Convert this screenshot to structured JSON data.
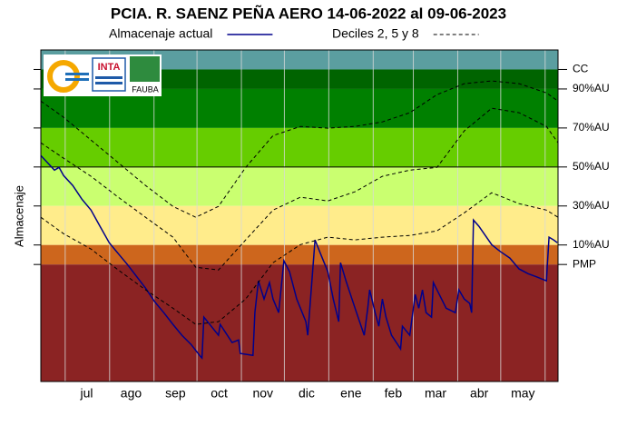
{
  "chart_data": {
    "type": "line",
    "title": "PCIA. R. SAENZ PEÑA AERO 14-06-2022 al 09-06-2023",
    "y_label": "Almacenaje",
    "logos": [
      "INTA",
      "FAUBA"
    ],
    "xlim": [
      0,
      361
    ],
    "xgrid": [
      17,
      48,
      79,
      109,
      140,
      170,
      201,
      232,
      260,
      291,
      321,
      352
    ],
    "xticks": [
      {
        "value": 32,
        "label": "jul"
      },
      {
        "value": 63,
        "label": "ago"
      },
      {
        "value": 94,
        "label": "sep"
      },
      {
        "value": 124.5,
        "label": "oct"
      },
      {
        "value": 155,
        "label": "nov"
      },
      {
        "value": 185.5,
        "label": "dic"
      },
      {
        "value": 216.5,
        "label": "ene"
      },
      {
        "value": 246,
        "label": "feb"
      },
      {
        "value": 275.5,
        "label": "mar"
      },
      {
        "value": 306,
        "label": "abr"
      },
      {
        "value": 336.5,
        "label": "may"
      }
    ],
    "ylim": [
      -60,
      110
    ],
    "yticks": [
      {
        "value": 100,
        "label": "CC"
      },
      {
        "value": 90,
        "label": "90%AU"
      },
      {
        "value": 70,
        "label": "70%AU"
      },
      {
        "value": 50,
        "label": "50%AU"
      },
      {
        "value": 30,
        "label": "30%AU"
      },
      {
        "value": 10,
        "label": "10%AU"
      },
      {
        "value": 0,
        "label": "PMP"
      }
    ],
    "refline": 50,
    "bands": [
      {
        "from": 100,
        "to": 110,
        "color": "#5b9ea0"
      },
      {
        "from": 90,
        "to": 100,
        "color": "#006400"
      },
      {
        "from": 70,
        "to": 90,
        "color": "#008000"
      },
      {
        "from": 50,
        "to": 70,
        "color": "#66cd00"
      },
      {
        "from": 30,
        "to": 50,
        "color": "#caff70"
      },
      {
        "from": 10,
        "to": 30,
        "color": "#ffec8b"
      },
      {
        "from": 0,
        "to": 10,
        "color": "#cd661d"
      },
      {
        "from": -60,
        "to": 0,
        "color": "#8b2323"
      }
    ],
    "series": [
      {
        "name": "Almacenaje actual",
        "color": "#00008b",
        "x": [
          0,
          9.5,
          12.7,
          15.9,
          22.3,
          28.6,
          35,
          41.3,
          47.7,
          54,
          60.4,
          66.8,
          73.1,
          79.5,
          85.8,
          92.2,
          98.5,
          104.9,
          111.3,
          112.5,
          113.8,
          124,
          125.2,
          133.5,
          138,
          139.2,
          148.1,
          149.4,
          151.9,
          155.8,
          159.6,
          162.1,
          166,
          169.7,
          173.6,
          178.6,
          185,
          186.3,
          191.4,
          195.2,
          200.3,
          204.1,
          207.9,
          209.2,
          213,
          219.3,
          225.7,
          228.2,
          229.5,
          233.3,
          235.9,
          238.4,
          240.9,
          244.8,
          251.1,
          252.4,
          257.5,
          261.3,
          263.8,
          266.4,
          268.9,
          272.7,
          274,
          276.5,
          282.9,
          289.3,
          291.8,
          295.6,
          299.4,
          300.7,
          302,
          305.8,
          314.7,
          318.5,
          321,
          327.4,
          333.8,
          340.1,
          346.5,
          352.9,
          354.7,
          357.9,
          360.5
        ],
        "values": [
          55.9,
          48.4,
          49.8,
          45.6,
          40.5,
          33.5,
          27.9,
          19.6,
          11.2,
          5.6,
          0,
          -6.1,
          -12.1,
          -19.1,
          -24.7,
          -30.7,
          -36.3,
          -41,
          -47,
          -48,
          -27,
          -36.3,
          -30.7,
          -40,
          -38.7,
          -45.6,
          -46.6,
          -24.7,
          -8.4,
          -17.7,
          -9.3,
          -17.7,
          -24.7,
          1.9,
          -3.7,
          -17.7,
          -29.3,
          -36.3,
          12.6,
          5.6,
          -3.7,
          -17.7,
          -29.3,
          0.9,
          -8.4,
          -22.4,
          -36.3,
          -22.4,
          -13,
          -24.7,
          -31.7,
          -17.7,
          -27,
          -36.3,
          -43.3,
          -31.7,
          -36.3,
          -15.4,
          -22.4,
          -13,
          -24.7,
          -27,
          -9.3,
          -13,
          -22.4,
          -24.7,
          -13,
          -17.7,
          -20,
          -24.7,
          22.8,
          19.6,
          10.2,
          7.9,
          6.5,
          3.3,
          -2.3,
          -4.7,
          -6.5,
          -8.4,
          14,
          12.6,
          11.2
        ]
      },
      {
        "name": "Deciles 2, 5 y 8",
        "color": "#000000",
        "dash": "4 3",
        "x": [
          0,
          15.9,
          35,
          54,
          73.1,
          92.2,
          108.1,
          124,
          143,
          162.1,
          181.2,
          200.3,
          219.3,
          238.4,
          257.5,
          276.5,
          295.6,
          314.7,
          333.8,
          352.9,
          361
        ],
        "values": [
          [
            24.2,
            15.8,
            7.9,
            -2.8,
            -13,
            -22.4,
            -30.7,
            -29.3,
            -17.7,
            0.9,
            10.2,
            14,
            12.6,
            14,
            14.9,
            17.2,
            26.5,
            36.8,
            31.2,
            27.9,
            24.2
          ],
          [
            62.4,
            54.5,
            45.2,
            34.5,
            24.2,
            14,
            -1.4,
            -2.8,
            12.6,
            27.9,
            34.5,
            32.6,
            37.3,
            45.2,
            48.4,
            49.8,
            68.5,
            80.1,
            77.8,
            70.8,
            62.4
          ],
          [
            83.8,
            75.5,
            63.8,
            52.2,
            40.5,
            29.8,
            24.2,
            29.8,
            49.8,
            66.1,
            70.8,
            69.9,
            70.8,
            73.1,
            77.8,
            87.1,
            92.7,
            94.1,
            92.7,
            88,
            83.8
          ]
        ]
      }
    ]
  }
}
